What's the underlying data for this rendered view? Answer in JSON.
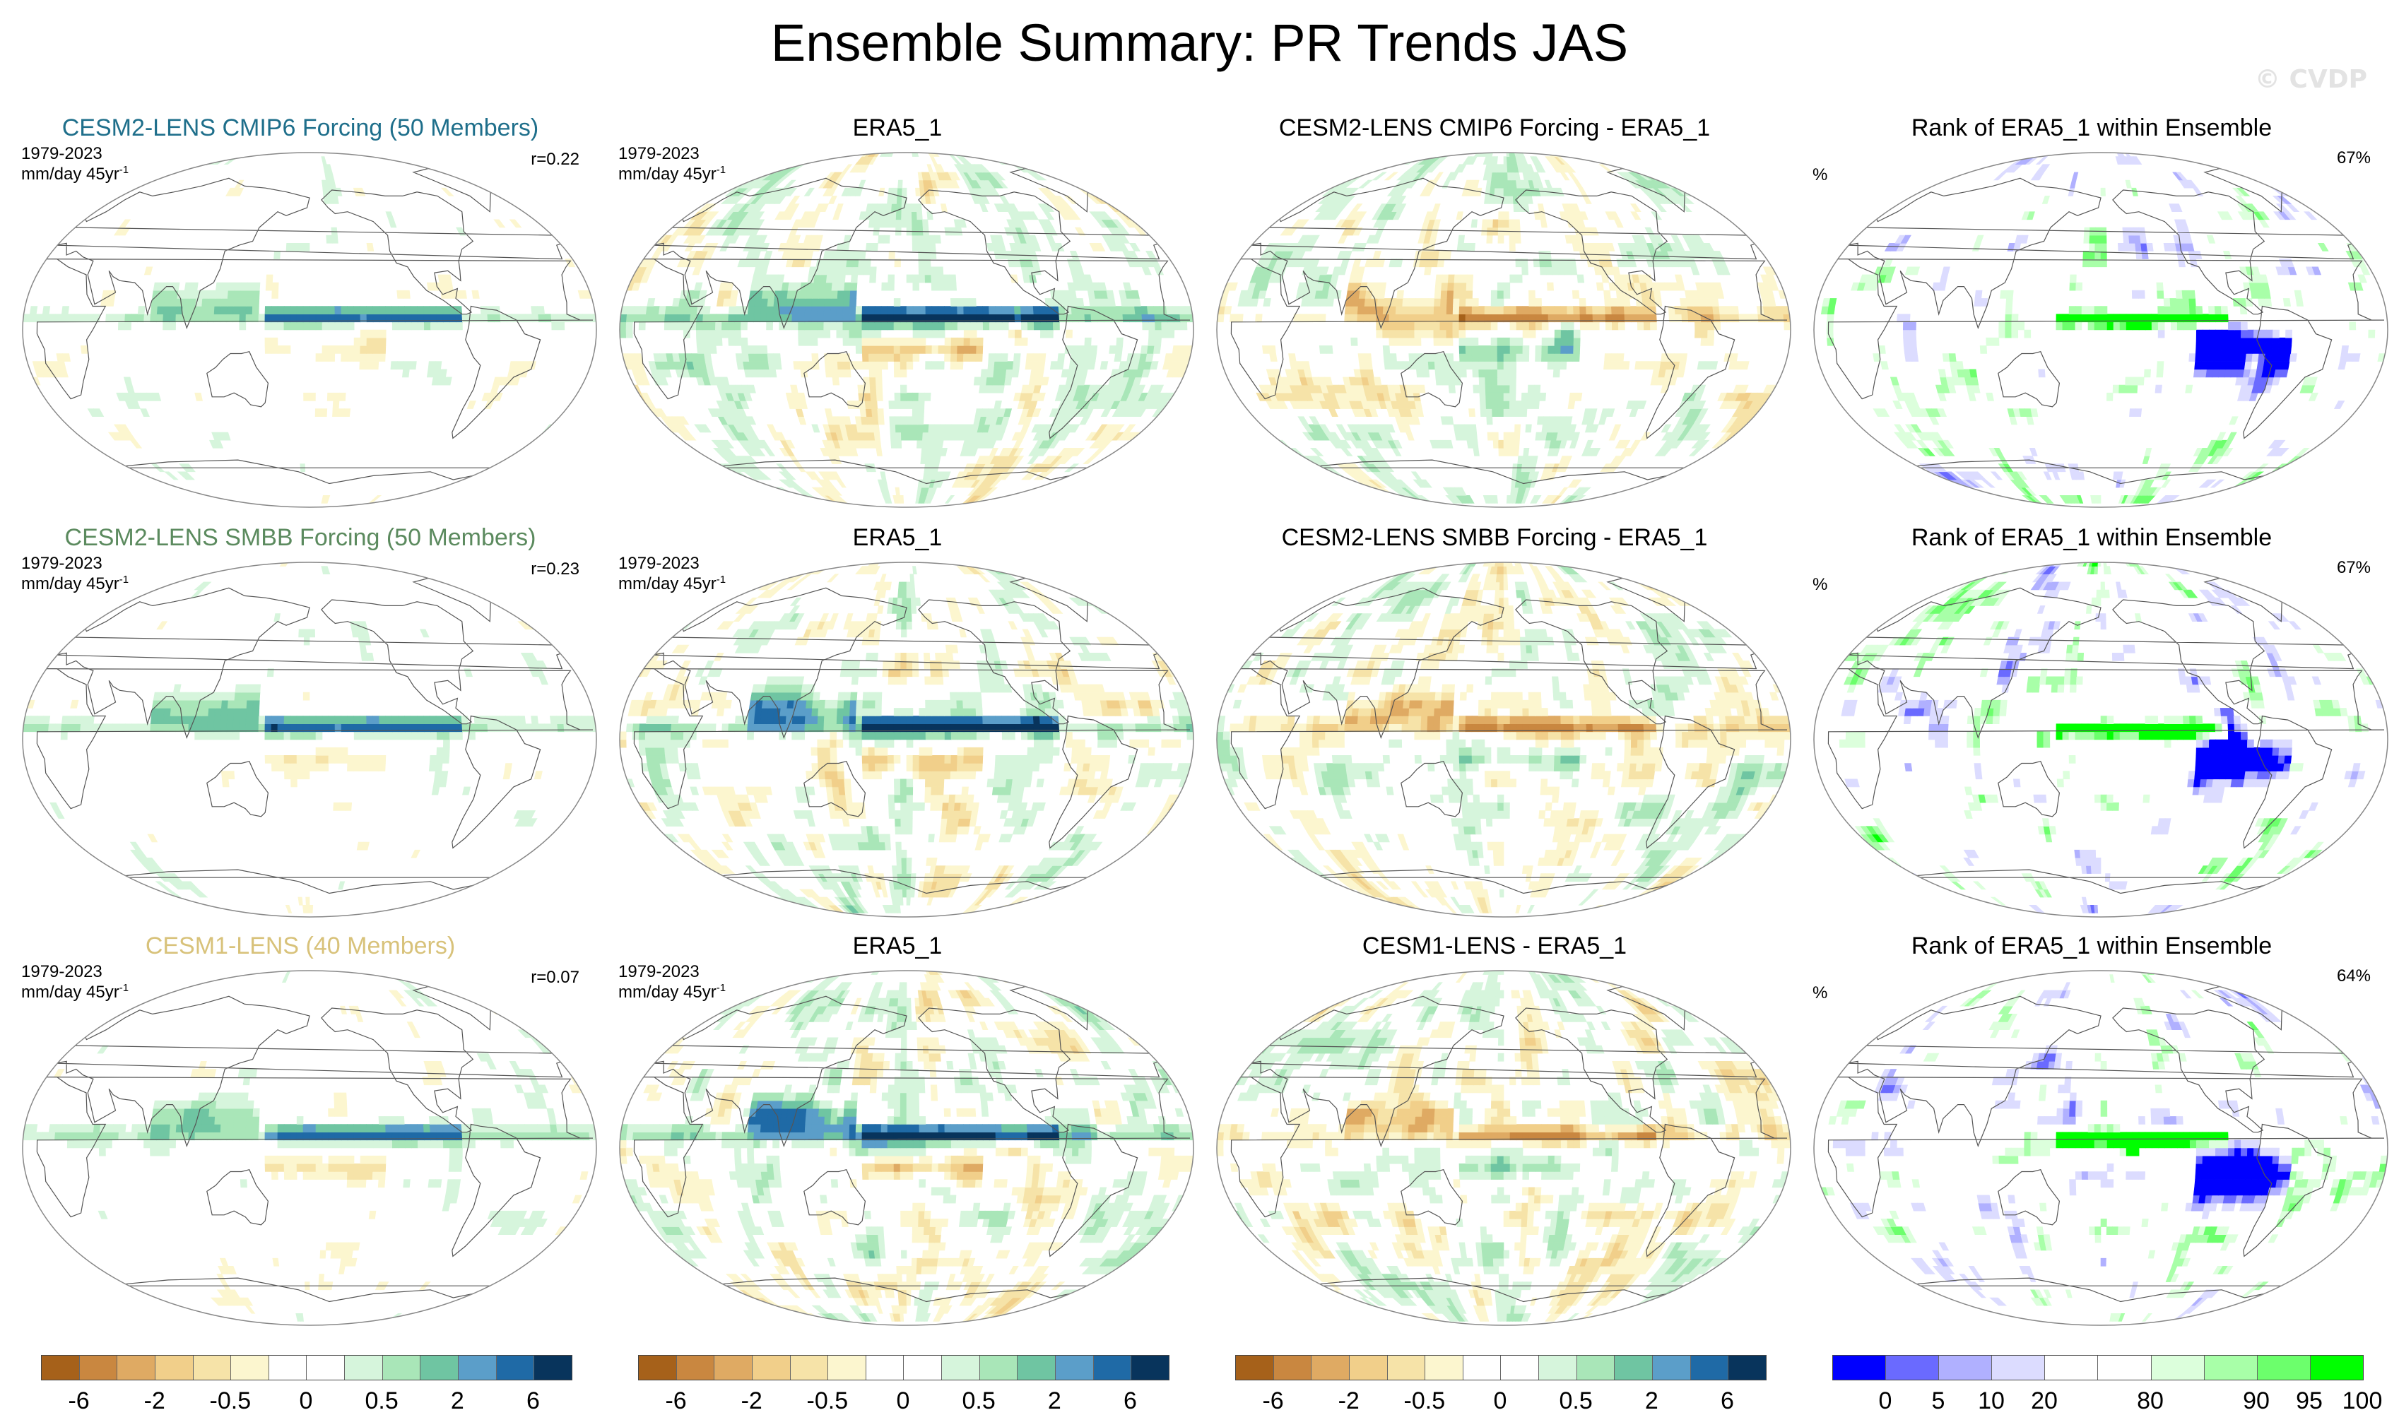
{
  "title": "Ensemble Summary: PR Trends JAS",
  "watermark": "© CVDP",
  "rows": [
    {
      "model": {
        "title": "CESM2-LENS CMIP6 Forcing (50 Members)",
        "title_color": "#1f6f8b",
        "years": "1979-2023",
        "units": "mm/day 45yr",
        "units_sup": "-1",
        "r": "r=0.22"
      },
      "obs": {
        "title": "ERA5_1",
        "years": "1979-2023",
        "units": "mm/day 45yr",
        "units_sup": "-1"
      },
      "diff": {
        "title": "CESM2-LENS CMIP6 Forcing - ERA5_1"
      },
      "rank": {
        "title": "Rank of ERA5_1 within Ensemble",
        "unit": "%",
        "pct": "67%"
      }
    },
    {
      "model": {
        "title": "CESM2-LENS SMBB Forcing (50 Members)",
        "title_color": "#5b8a5e",
        "years": "1979-2023",
        "units": "mm/day 45yr",
        "units_sup": "-1",
        "r": "r=0.23"
      },
      "obs": {
        "title": "ERA5_1",
        "years": "1979-2023",
        "units": "mm/day 45yr",
        "units_sup": "-1"
      },
      "diff": {
        "title": "CESM2-LENS SMBB Forcing - ERA5_1"
      },
      "rank": {
        "title": "Rank of ERA5_1 within Ensemble",
        "unit": "%",
        "pct": "67%"
      }
    },
    {
      "model": {
        "title": "CESM1-LENS (40 Members)",
        "title_color": "#d8c27a",
        "years": "1979-2023",
        "units": "mm/day 45yr",
        "units_sup": "-1",
        "r": "r=0.07"
      },
      "obs": {
        "title": "ERA5_1",
        "years": "1979-2023",
        "units": "mm/day 45yr",
        "units_sup": "-1"
      },
      "diff": {
        "title": "CESM1-LENS - ERA5_1"
      },
      "rank": {
        "title": "Rank of ERA5_1 within Ensemble",
        "unit": "%",
        "pct": "64%"
      }
    }
  ],
  "colorbars": {
    "trend": {
      "colors": [
        "#a6611a",
        "#c98740",
        "#dfaa63",
        "#f1cf8a",
        "#f6e3a8",
        "#fcf6cf",
        "#ffffff",
        "#ffffff",
        "#d6f5dc",
        "#a9e6b8",
        "#6fc5a2",
        "#5b9ec9",
        "#1f6aa6",
        "#08345c"
      ],
      "labels": [
        "-6",
        "-2",
        "-0.5",
        "0",
        "0.5",
        "2",
        "6"
      ]
    },
    "rank": {
      "colors": [
        "#0000ff",
        "#6a6aff",
        "#b0b0ff",
        "#dcdcff",
        "#ffffff",
        "#ffffff",
        "#dcffdc",
        "#a8ffa8",
        "#6cff6c",
        "#00ff00"
      ],
      "labels": [
        "0",
        "5",
        "10",
        "20",
        "80",
        "90",
        "95",
        "100"
      ]
    }
  },
  "chart_data": [
    {
      "type": "heatmap",
      "projection": "Robinson (global, Pacific-centered)",
      "title": "CESM2-LENS CMIP6 Forcing (50 Members)",
      "period": "1979-2023",
      "units": "mm/day 45yr-1",
      "pattern_correlation": 0.22,
      "contour_levels": [
        -6,
        -2,
        -0.5,
        0,
        0.5,
        2,
        6
      ]
    },
    {
      "type": "heatmap",
      "projection": "Robinson (global, Pacific-centered)",
      "title": "ERA5_1",
      "period": "1979-2023",
      "units": "mm/day 45yr-1",
      "contour_levels": [
        -6,
        -2,
        -0.5,
        0,
        0.5,
        2,
        6
      ]
    },
    {
      "type": "heatmap",
      "projection": "Robinson (global, Pacific-centered)",
      "title": "CESM2-LENS CMIP6 Forcing - ERA5_1",
      "contour_levels": [
        -6,
        -2,
        -0.5,
        0,
        0.5,
        2,
        6
      ]
    },
    {
      "type": "heatmap",
      "projection": "Robinson (global, Pacific-centered)",
      "title": "Rank of ERA5_1 within Ensemble",
      "units": "%",
      "area_percent": 67,
      "contour_levels": [
        0,
        5,
        10,
        20,
        80,
        90,
        95,
        100
      ]
    },
    {
      "type": "heatmap",
      "projection": "Robinson (global, Pacific-centered)",
      "title": "CESM2-LENS SMBB Forcing (50 Members)",
      "period": "1979-2023",
      "units": "mm/day 45yr-1",
      "pattern_correlation": 0.23,
      "contour_levels": [
        -6,
        -2,
        -0.5,
        0,
        0.5,
        2,
        6
      ]
    },
    {
      "type": "heatmap",
      "projection": "Robinson (global, Pacific-centered)",
      "title": "ERA5_1",
      "period": "1979-2023",
      "units": "mm/day 45yr-1",
      "contour_levels": [
        -6,
        -2,
        -0.5,
        0,
        0.5,
        2,
        6
      ]
    },
    {
      "type": "heatmap",
      "projection": "Robinson (global, Pacific-centered)",
      "title": "CESM2-LENS SMBB Forcing - ERA5_1",
      "contour_levels": [
        -6,
        -2,
        -0.5,
        0,
        0.5,
        2,
        6
      ]
    },
    {
      "type": "heatmap",
      "projection": "Robinson (global, Pacific-centered)",
      "title": "Rank of ERA5_1 within Ensemble",
      "units": "%",
      "area_percent": 67,
      "contour_levels": [
        0,
        5,
        10,
        20,
        80,
        90,
        95,
        100
      ]
    },
    {
      "type": "heatmap",
      "projection": "Robinson (global, Pacific-centered)",
      "title": "CESM1-LENS (40 Members)",
      "period": "1979-2023",
      "units": "mm/day 45yr-1",
      "pattern_correlation": 0.07,
      "contour_levels": [
        -6,
        -2,
        -0.5,
        0,
        0.5,
        2,
        6
      ]
    },
    {
      "type": "heatmap",
      "projection": "Robinson (global, Pacific-centered)",
      "title": "ERA5_1",
      "period": "1979-2023",
      "units": "mm/day 45yr-1",
      "contour_levels": [
        -6,
        -2,
        -0.5,
        0,
        0.5,
        2,
        6
      ]
    },
    {
      "type": "heatmap",
      "projection": "Robinson (global, Pacific-centered)",
      "title": "CESM1-LENS - ERA5_1",
      "contour_levels": [
        -6,
        -2,
        -0.5,
        0,
        0.5,
        2,
        6
      ]
    },
    {
      "type": "heatmap",
      "projection": "Robinson (global, Pacific-centered)",
      "title": "Rank of ERA5_1 within Ensemble",
      "units": "%",
      "area_percent": 64,
      "contour_levels": [
        0,
        5,
        10,
        20,
        80,
        90,
        95,
        100
      ]
    }
  ]
}
